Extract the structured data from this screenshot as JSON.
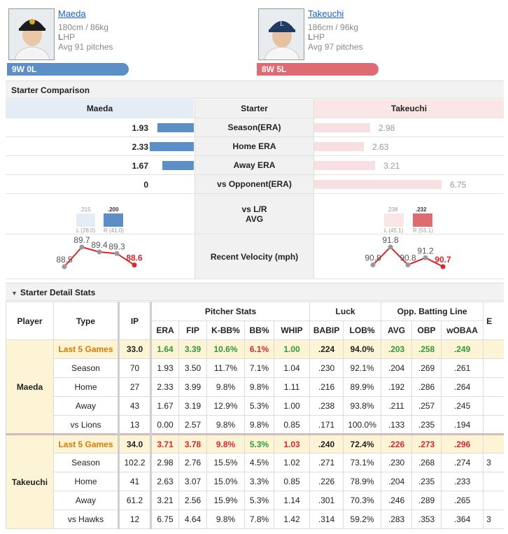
{
  "home": {
    "name": "Maeda",
    "height_weight": "180cm / 86kg",
    "throws_bold": "L",
    "throws_rest": "HP",
    "avg_pitches": "Avg 91 pitches",
    "record": "9W 0L"
  },
  "away": {
    "name": "Takeuchi",
    "height_weight": "186cm / 96kg",
    "throws_bold": "L",
    "throws_rest": "HP",
    "avg_pitches": "Avg 97 pitches",
    "record": "8W 5L"
  },
  "comparison": {
    "title": "Starter Comparison",
    "head_mid": "Starter",
    "rows": [
      {
        "label": "Season(ERA)",
        "home": "1.93",
        "away": "2.98",
        "home_val": 1.93,
        "away_val": 2.98
      },
      {
        "label": "Home ERA",
        "home": "2.33",
        "away": "2.63",
        "home_val": 2.33,
        "away_val": 2.63
      },
      {
        "label": "Away ERA",
        "home": "1.67",
        "away": "3.21",
        "home_val": 1.67,
        "away_val": 3.21
      },
      {
        "label": "vs Opponent(ERA)",
        "home": "0",
        "away": "6.75",
        "home_val": 0,
        "away_val": 6.75
      }
    ],
    "split_label_1": "vs L/R",
    "split_label_2": "AVG",
    "home_split": {
      "l_avg": ".215",
      "r_avg": ".200",
      "l_pa": "L (28.0)",
      "r_pa": "R (41.0)"
    },
    "away_split": {
      "l_avg": ".238",
      "r_avg": ".232",
      "l_pa": "L (45.1)",
      "r_pa": "R (55.1)"
    },
    "velocity_label": "Recent Velocity (mph)",
    "home_velocity": [
      "88.5",
      "89.7",
      "89.4",
      "89.3",
      "88.6"
    ],
    "away_velocity": [
      "90.8",
      "91.8",
      "90.8",
      "91.2",
      "90.7"
    ]
  },
  "detail": {
    "title": "Starter Detail Stats",
    "headers": {
      "player": "Player",
      "type": "Type",
      "ip": "IP",
      "pitcher_stats": "Pitcher Stats",
      "luck": "Luck",
      "opp": "Opp. Batting Line",
      "era": "ERA",
      "fip": "FIP",
      "kbb": "K-BB%",
      "bb": "BB%",
      "whip": "WHIP",
      "babip": "BABIP",
      "lob": "LOB%",
      "avg": "AVG",
      "obp": "OBP",
      "wobaa": "wOBAA",
      "extra": "E"
    },
    "home_rows": [
      [
        "Last 5 Games",
        "33.0",
        "1.64",
        "3.39",
        "10.6%",
        "6.1%",
        "1.00",
        ".224",
        "94.0%",
        ".203",
        ".258",
        ".249"
      ],
      [
        "Season",
        "70",
        "1.93",
        "3.50",
        "11.7%",
        "7.1%",
        "1.04",
        ".230",
        "92.1%",
        ".204",
        ".269",
        ".261"
      ],
      [
        "Home",
        "27",
        "2.33",
        "3.99",
        "9.8%",
        "9.8%",
        "1.11",
        ".216",
        "89.9%",
        ".192",
        ".286",
        ".264"
      ],
      [
        "Away",
        "43",
        "1.67",
        "3.19",
        "12.9%",
        "5.3%",
        "1.00",
        ".238",
        "93.8%",
        ".211",
        ".257",
        ".245"
      ],
      [
        "vs Lions",
        "13",
        "0.00",
        "2.57",
        "9.8%",
        "9.8%",
        "0.85",
        ".171",
        "100.0%",
        ".133",
        ".235",
        ".194"
      ]
    ],
    "away_rows": [
      [
        "Last 5 Games",
        "34.0",
        "3.71",
        "3.78",
        "9.8%",
        "5.3%",
        "1.03",
        ".240",
        "72.4%",
        ".226",
        ".273",
        ".296"
      ],
      [
        "Season",
        "102.2",
        "2.98",
        "2.76",
        "15.5%",
        "4.5%",
        "1.02",
        ".271",
        "73.1%",
        ".230",
        ".268",
        ".274"
      ],
      [
        "Home",
        "41",
        "2.63",
        "3.07",
        "15.0%",
        "3.3%",
        "0.85",
        ".226",
        "78.9%",
        ".204",
        ".235",
        ".233"
      ],
      [
        "Away",
        "61.2",
        "3.21",
        "2.56",
        "15.9%",
        "5.3%",
        "1.14",
        ".301",
        "70.3%",
        ".246",
        ".289",
        ".265"
      ],
      [
        "vs Hawks",
        "12",
        "6.75",
        "4.64",
        "9.8%",
        "7.8%",
        "1.42",
        ".314",
        "59.2%",
        ".283",
        ".353",
        ".364"
      ]
    ],
    "extra_col_home": [
      "",
      "",
      "",
      "",
      ""
    ],
    "extra_col_away": [
      "",
      "3",
      "",
      "",
      "3"
    ]
  }
}
